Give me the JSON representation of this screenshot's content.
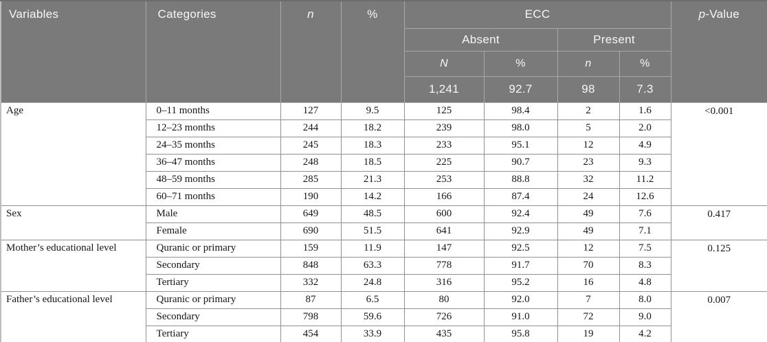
{
  "table": {
    "header": {
      "variables": "Variables",
      "categories": "Categories",
      "n_label": "n",
      "pct_label": "%",
      "ecc_label": "ECC",
      "absent_label": "Absent",
      "present_label": "Present",
      "absent_n_label": "N",
      "absent_pct_label": "%",
      "present_n_label": "n",
      "present_pct_label": "%",
      "absent_total_n": "1,241",
      "absent_total_pct": "92.7",
      "present_total_n": "98",
      "present_total_pct": "7.3",
      "p_value_italic": "p",
      "p_value_rest": "-Value"
    },
    "row_keys": [
      "category",
      "n",
      "pct",
      "absent_n",
      "absent_pct",
      "present_n",
      "present_pct"
    ],
    "groups": [
      {
        "variable": "Age",
        "p_value": "<0.001",
        "rows": [
          {
            "category": "0–11 months",
            "n": "127",
            "pct": "9.5",
            "absent_n": "125",
            "absent_pct": "98.4",
            "present_n": "2",
            "present_pct": "1.6"
          },
          {
            "category": "12–23 months",
            "n": "244",
            "pct": "18.2",
            "absent_n": "239",
            "absent_pct": "98.0",
            "present_n": "5",
            "present_pct": "2.0"
          },
          {
            "category": "24–35 months",
            "n": "245",
            "pct": "18.3",
            "absent_n": "233",
            "absent_pct": "95.1",
            "present_n": "12",
            "present_pct": "4.9"
          },
          {
            "category": "36–47 months",
            "n": "248",
            "pct": "18.5",
            "absent_n": "225",
            "absent_pct": "90.7",
            "present_n": "23",
            "present_pct": "9.3"
          },
          {
            "category": "48–59 months",
            "n": "285",
            "pct": "21.3",
            "absent_n": "253",
            "absent_pct": "88.8",
            "present_n": "32",
            "present_pct": "11.2"
          },
          {
            "category": "60–71 months",
            "n": "190",
            "pct": "14.2",
            "absent_n": "166",
            "absent_pct": "87.4",
            "present_n": "24",
            "present_pct": "12.6"
          }
        ]
      },
      {
        "variable": "Sex",
        "p_value": "0.417",
        "rows": [
          {
            "category": "Male",
            "n": "649",
            "pct": "48.5",
            "absent_n": "600",
            "absent_pct": "92.4",
            "present_n": "49",
            "present_pct": "7.6"
          },
          {
            "category": "Female",
            "n": "690",
            "pct": "51.5",
            "absent_n": "641",
            "absent_pct": "92.9",
            "present_n": "49",
            "present_pct": "7.1"
          }
        ]
      },
      {
        "variable": "Mother’s educational level",
        "p_value": "0.125",
        "rows": [
          {
            "category": "Quranic or primary",
            "n": "159",
            "pct": "11.9",
            "absent_n": "147",
            "absent_pct": "92.5",
            "present_n": "12",
            "present_pct": "7.5"
          },
          {
            "category": "Secondary",
            "n": "848",
            "pct": "63.3",
            "absent_n": "778",
            "absent_pct": "91.7",
            "present_n": "70",
            "present_pct": "8.3"
          },
          {
            "category": "Tertiary",
            "n": "332",
            "pct": "24.8",
            "absent_n": "316",
            "absent_pct": "95.2",
            "present_n": "16",
            "present_pct": "4.8"
          }
        ]
      },
      {
        "variable": "Father’s educational level",
        "p_value": "0.007",
        "rows": [
          {
            "category": "Quranic or primary",
            "n": "87",
            "pct": "6.5",
            "absent_n": "80",
            "absent_pct": "92.0",
            "present_n": "7",
            "present_pct": "8.0"
          },
          {
            "category": "Secondary",
            "n": "798",
            "pct": "59.6",
            "absent_n": "726",
            "absent_pct": "91.0",
            "present_n": "72",
            "present_pct": "9.0"
          },
          {
            "category": "Tertiary",
            "n": "454",
            "pct": "33.9",
            "absent_n": "435",
            "absent_pct": "95.8",
            "present_n": "19",
            "present_pct": "4.2"
          }
        ]
      }
    ],
    "colors": {
      "header_bg": "#7a7a7a",
      "header_text": "#f7f7f7",
      "header_border": "#a9a9a9",
      "body_border": "#909090",
      "body_text": "#161616"
    }
  }
}
